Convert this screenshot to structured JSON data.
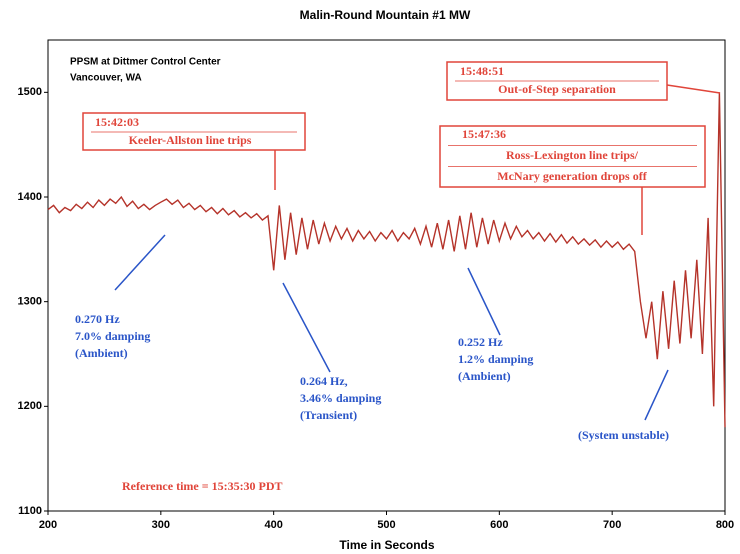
{
  "chart_data": {
    "type": "line",
    "title": "Malin-Round Mountain #1 MW",
    "x_label": "Time in Seconds",
    "xlim": [
      200,
      800
    ],
    "xticks": [
      200,
      300,
      400,
      500,
      600,
      700,
      800
    ],
    "ylim": [
      1100,
      1550
    ],
    "yticks": [
      1100,
      1200,
      1300,
      1400,
      1500
    ],
    "x": [
      200,
      205,
      210,
      215,
      220,
      225,
      230,
      235,
      240,
      245,
      250,
      255,
      260,
      265,
      270,
      275,
      280,
      285,
      290,
      295,
      300,
      305,
      310,
      315,
      320,
      325,
      330,
      335,
      340,
      345,
      350,
      355,
      360,
      365,
      370,
      375,
      380,
      385,
      390,
      395,
      400,
      405,
      410,
      415,
      420,
      425,
      430,
      435,
      440,
      445,
      450,
      455,
      460,
      465,
      470,
      475,
      480,
      485,
      490,
      495,
      500,
      505,
      510,
      515,
      520,
      525,
      530,
      535,
      540,
      545,
      550,
      555,
      560,
      565,
      570,
      575,
      580,
      585,
      590,
      595,
      600,
      605,
      610,
      615,
      620,
      625,
      630,
      635,
      640,
      645,
      650,
      655,
      660,
      665,
      670,
      675,
      680,
      685,
      690,
      695,
      700,
      705,
      710,
      715,
      720,
      725,
      730,
      735,
      740,
      745,
      750,
      755,
      760,
      765,
      770,
      775,
      780,
      785,
      790,
      795,
      800
    ],
    "series": [
      {
        "name": "MW",
        "color": "#b5332a",
        "values": [
          1388,
          1392,
          1385,
          1390,
          1387,
          1393,
          1389,
          1395,
          1390,
          1397,
          1392,
          1398,
          1394,
          1400,
          1391,
          1396,
          1389,
          1393,
          1388,
          1392,
          1395,
          1398,
          1393,
          1397,
          1390,
          1394,
          1388,
          1392,
          1386,
          1390,
          1384,
          1389,
          1383,
          1387,
          1381,
          1385,
          1380,
          1384,
          1378,
          1382,
          1330,
          1392,
          1340,
          1385,
          1345,
          1380,
          1350,
          1378,
          1355,
          1375,
          1358,
          1372,
          1360,
          1370,
          1358,
          1368,
          1360,
          1367,
          1358,
          1366,
          1360,
          1368,
          1358,
          1366,
          1360,
          1370,
          1355,
          1372,
          1352,
          1375,
          1350,
          1378,
          1348,
          1382,
          1350,
          1385,
          1352,
          1380,
          1355,
          1378,
          1358,
          1375,
          1360,
          1372,
          1362,
          1368,
          1360,
          1366,
          1358,
          1365,
          1357,
          1364,
          1356,
          1362,
          1355,
          1360,
          1354,
          1359,
          1352,
          1358,
          1352,
          1357,
          1350,
          1355,
          1348,
          1300,
          1265,
          1300,
          1245,
          1310,
          1255,
          1320,
          1260,
          1330,
          1265,
          1340,
          1250,
          1380,
          1200,
          1500,
          1180
        ]
      }
    ],
    "annotations": [
      {
        "text": [
          "PPSM at Dittmer Control Center",
          "Vancouver, WA"
        ],
        "color": "#000000"
      },
      {
        "text": [
          "15:42:03",
          "Keeler-Allston line trips"
        ],
        "color": "#e0453a"
      },
      {
        "text": [
          "15:47:36",
          "Ross-Lexington line trips/",
          "McNary generation drops off"
        ],
        "color": "#e0453a"
      },
      {
        "text": [
          "15:48:51",
          "Out-of-Step separation"
        ],
        "color": "#e0453a"
      },
      {
        "text": [
          "0.270 Hz",
          "7.0% damping",
          "(Ambient)"
        ],
        "color": "#2a55c8"
      },
      {
        "text": [
          "0.264 Hz,",
          "3.46% damping",
          "(Transient)"
        ],
        "color": "#2a55c8"
      },
      {
        "text": [
          "0.252 Hz",
          "1.2% damping",
          "(Ambient)"
        ],
        "color": "#2a55c8"
      },
      {
        "text": [
          "(System unstable)"
        ],
        "color": "#2a55c8"
      },
      {
        "text": [
          "Reference time = 15:35:30 PDT"
        ],
        "color": "#e0453a"
      }
    ]
  }
}
